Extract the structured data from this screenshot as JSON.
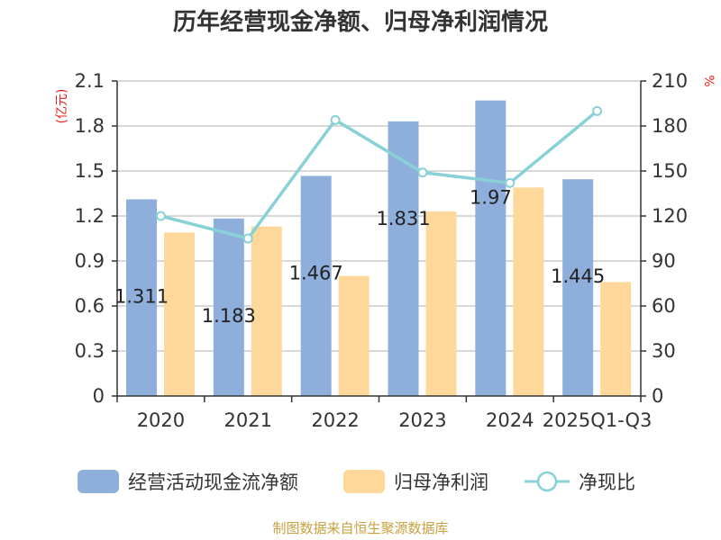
{
  "chart_data": {
    "type": "bar",
    "title": "历年经营现金净额、归母净利润情况",
    "categories": [
      "2020",
      "2021",
      "2022",
      "2023",
      "2024",
      "2025Q1-Q3"
    ],
    "y_left": {
      "unit": "(亿元)",
      "ylim": [
        0,
        2.1
      ],
      "ticks": [
        "0",
        "0.3",
        "0.6",
        "0.9",
        "1.2",
        "1.5",
        "1.8",
        "2.1"
      ]
    },
    "y_right": {
      "unit": "%",
      "ylim": [
        0,
        210
      ],
      "ticks": [
        "0",
        "30",
        "60",
        "90",
        "120",
        "150",
        "180",
        "210"
      ]
    },
    "grid": true,
    "legend_position": "bottom",
    "series": [
      {
        "name": "经营活动现金流净额",
        "type": "bar",
        "axis": "left",
        "color": "#8eaedb",
        "values": [
          1.311,
          1.183,
          1.467,
          1.831,
          1.97,
          1.445
        ],
        "labels": [
          "1.311",
          "1.183",
          "1.467",
          "1.831",
          "1.97",
          "1.445"
        ]
      },
      {
        "name": "归母净利润",
        "type": "bar",
        "axis": "left",
        "color": "#fed89a",
        "values": [
          1.09,
          1.13,
          0.8,
          1.23,
          1.39,
          0.76
        ]
      },
      {
        "name": "净现比",
        "type": "line",
        "axis": "right",
        "color": "#88d1d6",
        "values": [
          120,
          105,
          184,
          149,
          142,
          190
        ]
      }
    ]
  },
  "source": "制图数据来自恒生聚源数据库"
}
